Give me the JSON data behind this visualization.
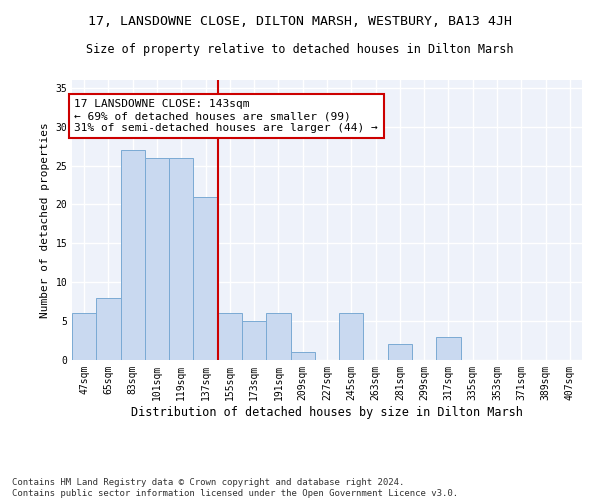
{
  "title": "17, LANSDOWNE CLOSE, DILTON MARSH, WESTBURY, BA13 4JH",
  "subtitle": "Size of property relative to detached houses in Dilton Marsh",
  "xlabel": "Distribution of detached houses by size in Dilton Marsh",
  "ylabel": "Number of detached properties",
  "footer": "Contains HM Land Registry data © Crown copyright and database right 2024.\nContains public sector information licensed under the Open Government Licence v3.0.",
  "categories": [
    "47sqm",
    "65sqm",
    "83sqm",
    "101sqm",
    "119sqm",
    "137sqm",
    "155sqm",
    "173sqm",
    "191sqm",
    "209sqm",
    "227sqm",
    "245sqm",
    "263sqm",
    "281sqm",
    "299sqm",
    "317sqm",
    "335sqm",
    "353sqm",
    "371sqm",
    "389sqm",
    "407sqm"
  ],
  "values": [
    6,
    8,
    27,
    26,
    26,
    21,
    6,
    5,
    6,
    1,
    0,
    6,
    0,
    2,
    0,
    3,
    0,
    0,
    0,
    0,
    0
  ],
  "bar_color": "#c9d9f0",
  "bar_edge_color": "#7aaad4",
  "vline_x": 5.5,
  "vline_color": "#cc0000",
  "annotation_box_text": "17 LANSDOWNE CLOSE: 143sqm\n← 69% of detached houses are smaller (99)\n31% of semi-detached houses are larger (44) →",
  "box_edge_color": "#cc0000",
  "ylim": [
    0,
    36
  ],
  "yticks": [
    0,
    5,
    10,
    15,
    20,
    25,
    30,
    35
  ],
  "bg_color": "#eef2fa",
  "grid_color": "#ffffff",
  "title_fontsize": 9.5,
  "subtitle_fontsize": 8.5,
  "xlabel_fontsize": 8.5,
  "ylabel_fontsize": 8,
  "tick_fontsize": 7,
  "annotation_fontsize": 8,
  "footer_fontsize": 6.5
}
